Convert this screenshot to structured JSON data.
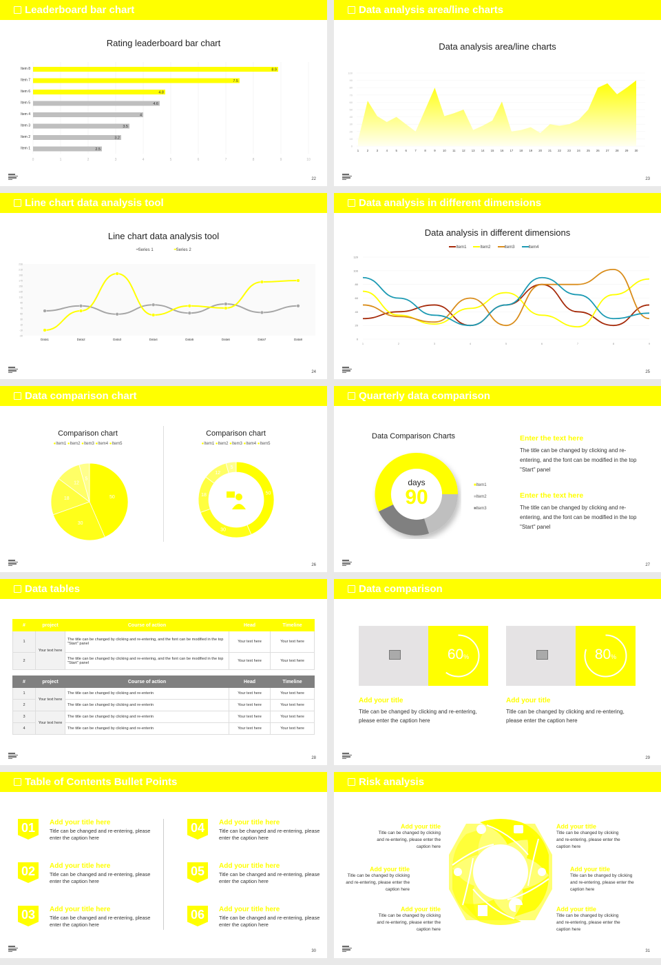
{
  "colors": {
    "accent": "#ffff00",
    "gray": "#bfbfbf",
    "darkgray": "#808080",
    "bg": "#e9e9e9"
  },
  "slides": [
    {
      "header": "Leaderboard bar chart",
      "page": "22"
    },
    {
      "header": "Data analysis area/line charts",
      "page": "23"
    },
    {
      "header": "Line chart data analysis tool",
      "page": "24"
    },
    {
      "header": "Data analysis in different dimensions",
      "page": "25"
    },
    {
      "header": "Data comparison chart",
      "page": "26"
    },
    {
      "header": "Quarterly data comparison",
      "page": "27"
    },
    {
      "header": "Data tables",
      "page": "28"
    },
    {
      "header": "Data comparison",
      "page": "29"
    },
    {
      "header": "Table of Contents Bullet Points",
      "page": "30"
    },
    {
      "header": "Risk analysis",
      "page": "31"
    }
  ],
  "chart_data": [
    {
      "type": "bar",
      "orientation": "horizontal",
      "title": "Rating leaderboard bar chart",
      "categories": [
        "Item 8",
        "Item 7",
        "Item 6",
        "Item 5",
        "Item 4",
        "Item 3",
        "Item 2",
        "Item 1"
      ],
      "values": [
        8.9,
        7.5,
        4.8,
        4.6,
        4,
        3.5,
        3.2,
        2.5
      ],
      "highlighted": [
        "Item 8",
        "Item 7",
        "Item 6"
      ],
      "xlim": [
        0,
        10
      ],
      "xticks": [
        0,
        1,
        2,
        3,
        4,
        5,
        6,
        7,
        8,
        9,
        10
      ]
    },
    {
      "type": "area",
      "title": "Data analysis area/line charts",
      "x": [
        1,
        2,
        3,
        4,
        5,
        6,
        7,
        8,
        9,
        10,
        11,
        12,
        13,
        14,
        15,
        16,
        17,
        18,
        19,
        20,
        21,
        22,
        23,
        24,
        25,
        26,
        27,
        28,
        29,
        30
      ],
      "values": [
        8,
        62,
        41,
        33,
        40,
        30,
        20,
        50,
        80,
        41,
        45,
        50,
        22,
        28,
        35,
        61,
        20,
        22,
        26,
        18,
        30,
        28,
        30,
        36,
        50,
        80,
        86,
        71,
        80,
        90
      ],
      "ylim": [
        0,
        100
      ],
      "yticks": [
        0,
        10,
        20,
        30,
        40,
        50,
        60,
        70,
        80,
        90,
        100
      ]
    },
    {
      "type": "line",
      "title": "Line chart data analysis tool",
      "categories": [
        "Data1",
        "Data2",
        "Data3",
        "Data4",
        "Data5",
        "Data6",
        "Data7",
        "Data8"
      ],
      "series": [
        {
          "name": "Series 1",
          "color": "#a6a6a6",
          "values": [
            60,
            78,
            48,
            82,
            52,
            85,
            54,
            78
          ]
        },
        {
          "name": "Series 2",
          "color": "#ffff00",
          "values": [
            -10,
            60,
            195,
            45,
            78,
            70,
            165,
            170
          ]
        }
      ],
      "ylim": [
        -30,
        230
      ]
    },
    {
      "type": "line",
      "title": "Data analysis in different dimensions",
      "x": [
        1,
        2,
        3,
        4,
        5,
        6,
        7,
        8,
        9
      ],
      "series": [
        {
          "name": "Item1",
          "color": "#a52a0a",
          "values": [
            30,
            40,
            50,
            20,
            50,
            80,
            40,
            20,
            50
          ]
        },
        {
          "name": "Item2",
          "color": "#ffff00",
          "values": [
            70,
            35,
            22,
            45,
            68,
            35,
            18,
            65,
            88
          ]
        },
        {
          "name": "Item3",
          "color": "#d98c1a",
          "values": [
            50,
            33,
            25,
            60,
            20,
            80,
            80,
            102,
            30
          ]
        },
        {
          "name": "Item4",
          "color": "#1c9ab3",
          "values": [
            90,
            60,
            35,
            20,
            50,
            90,
            65,
            30,
            38
          ]
        }
      ],
      "ylim": [
        0,
        120
      ],
      "yticks": [
        0,
        20,
        40,
        60,
        80,
        100,
        120
      ]
    },
    {
      "type": "pie",
      "title": "Comparison chart",
      "categories": [
        "Item1",
        "Item2",
        "Item3",
        "Item4",
        "Item5"
      ],
      "values": [
        50,
        30,
        18,
        12,
        5
      ]
    },
    {
      "type": "pie",
      "subtype": "donut",
      "title": "Comparison chart",
      "categories": [
        "Item1",
        "Item2",
        "Item3",
        "Item4",
        "Item5"
      ],
      "values": [
        50,
        30,
        18,
        12,
        5
      ]
    },
    {
      "type": "pie",
      "subtype": "donut",
      "title": "Data Comparison Charts",
      "categories": [
        "Item1",
        "Item2",
        "Item3"
      ],
      "values": [
        50,
        20,
        30
      ],
      "center_label": "days",
      "center_value": "90"
    }
  ],
  "bar": {
    "title": "Rating leaderboard bar chart"
  },
  "area": {
    "title": "Data analysis area/line charts"
  },
  "line1": {
    "title": "Line chart data analysis tool",
    "legend": [
      "Series 1",
      "Series 2"
    ]
  },
  "line2": {
    "title": "Data analysis in different dimensions",
    "legend": [
      "Item1",
      "Item2",
      "Item3",
      "Item4"
    ]
  },
  "comparison": {
    "title": "Comparison chart",
    "legend": [
      "Item1",
      "Item2",
      "Item3",
      "Item4",
      "Item5"
    ]
  },
  "quarterly": {
    "chart_title": "Data Comparison Charts",
    "center_label": "days",
    "center_value": "90",
    "legend": [
      "Item1",
      "Item2",
      "Item3"
    ],
    "blocks": [
      {
        "title": "Enter the text here",
        "body": "The title can be changed by clicking and re-entering, and the font can be modified in the top \"Start\" panel"
      },
      {
        "title": "Enter the text here",
        "body": "The title can be changed by clicking and re-entering, and the font can be modified in the top \"Start\" panel"
      }
    ]
  },
  "tables": {
    "headers": [
      "#",
      "project",
      "Course of action",
      "Head",
      "Timeline"
    ],
    "t1": {
      "project": "Your text here",
      "rows": [
        {
          "n": "1",
          "action": "The title can be changed by clicking and re-entering, and the font can be modified in the top \"Start\" panel",
          "head": "Your text here",
          "time": "Your text here"
        },
        {
          "n": "2",
          "action": "The title can be changed by clicking and re-entering, and the font can be modified in the top \"Start\" panel",
          "head": "Your text here",
          "time": "Your text here"
        }
      ]
    },
    "t2": {
      "projects": [
        "Your text here",
        "Your text here"
      ],
      "rows": [
        {
          "n": "1",
          "action": "The title can be changed by clicking and re-enterin",
          "head": "Your text here",
          "time": "Your text here"
        },
        {
          "n": "2",
          "action": "The title can be changed by clicking and re-enterin",
          "head": "Your text here",
          "time": "Your text here"
        },
        {
          "n": "3",
          "action": "The title can be changed by clicking and re-enterin",
          "head": "Your text here",
          "time": "Your text here"
        },
        {
          "n": "4",
          "action": "The title can be changed by clicking and re-enterin",
          "head": "Your text here",
          "time": "Your text here"
        }
      ]
    }
  },
  "datacomp": {
    "cards": [
      {
        "percent": "60",
        "unit": "%",
        "title": "Add your title",
        "body": "Title can be changed by clicking and re-entering, please enter the caption here",
        "icon": "image-add-icon"
      },
      {
        "percent": "80",
        "unit": "%",
        "title": "Add your title",
        "body": "Title can be changed by clicking and re-entering, please enter the caption here",
        "icon": "image-add-icon"
      }
    ]
  },
  "toc": {
    "items": [
      {
        "num": "01",
        "title": "Add your title here",
        "body": "Title can be changed and re-entering, please enter the caption here"
      },
      {
        "num": "02",
        "title": "Add your title here",
        "body": "Title can be changed and re-entering, please enter the caption here"
      },
      {
        "num": "03",
        "title": "Add your title here",
        "body": "Title can be changed and re-entering, please enter the caption here"
      },
      {
        "num": "04",
        "title": "Add your title here",
        "body": "Title can be changed and re-entering, please enter the caption here"
      },
      {
        "num": "05",
        "title": "Add your title here",
        "body": "Title can be changed and re-entering, please enter the caption here"
      },
      {
        "num": "06",
        "title": "Add your title here",
        "body": "Title can be changed and re-entering, please enter the caption here"
      }
    ]
  },
  "risk": {
    "items": [
      {
        "title": "Add your title",
        "body": "Title can be changed by clicking and re-entering, please enter the caption here",
        "icon": "money-bag-icon"
      },
      {
        "title": "Add your title",
        "body": "Title can be changed by clicking and re-entering, please enter the caption here",
        "icon": "user-chat-icon"
      },
      {
        "title": "Add your title",
        "body": "Title can be changed by clicking and re-entering, please enter the caption here",
        "icon": "building-icon"
      },
      {
        "title": "Add your title",
        "body": "Title can be changed by clicking and re-entering, please enter the caption here",
        "icon": "database-icon"
      },
      {
        "title": "Add your title",
        "body": "Title can be changed by clicking and re-entering, please enter the caption here",
        "icon": "users-icon"
      },
      {
        "title": "Add your title",
        "body": "Title can be changed by clicking and re-entering, please enter the caption here",
        "icon": "pie-chart-icon"
      }
    ]
  }
}
